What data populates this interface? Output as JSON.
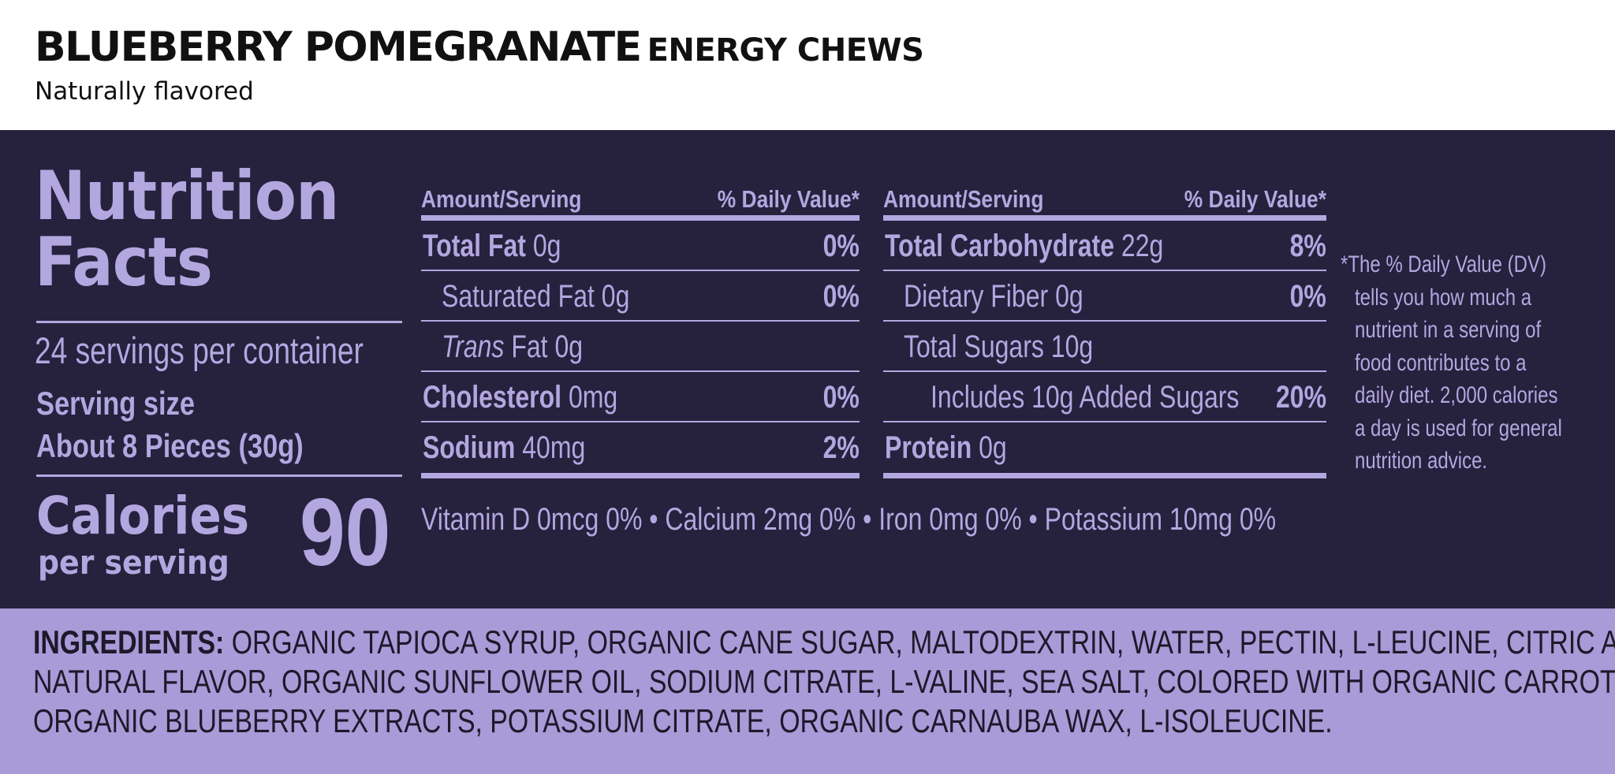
{
  "header": {
    "title_main": "BLUEBERRY POMEGRANATE",
    "title_sub": "ENERGY CHEWS",
    "subtitle": "Naturally flavored"
  },
  "facts": {
    "title_line1": "Nutrition",
    "title_line2": "Facts",
    "servings": "24 servings per container",
    "serving_size_label": "Serving size",
    "serving_size_value": "About 8 Pieces (30g)",
    "calories_label": "Calories",
    "calories_sub": "per serving",
    "calories_value": "90"
  },
  "table": {
    "amount_header": "Amount/Serving",
    "dv_header": "% Daily Value*",
    "left": [
      {
        "name": "Total Fat",
        "amount": "0g",
        "dv": "0%"
      },
      {
        "name": "Saturated Fat",
        "amount": "0g",
        "dv": "0%"
      },
      {
        "name": "Trans",
        "suffix": "Fat",
        "amount": "0g",
        "dv": ""
      },
      {
        "name": "Cholesterol",
        "amount": "0mg",
        "dv": "0%"
      },
      {
        "name": "Sodium",
        "amount": "40mg",
        "dv": "2%"
      }
    ],
    "right": [
      {
        "name": "Total Carbohydrate",
        "amount": "22g",
        "dv": "8%"
      },
      {
        "name": "Dietary Fiber",
        "amount": "0g",
        "dv": "0%"
      },
      {
        "name": "Total Sugars",
        "amount": "10g",
        "dv": ""
      },
      {
        "name": "Includes 10g Added Sugars",
        "amount": "",
        "dv": "20%"
      },
      {
        "name": "Protein",
        "amount": "0g",
        "dv": ""
      }
    ],
    "vitamins": "Vitamin D 0mcg 0% • Calcium 2mg 0% • Iron 0mg 0% • Potassium 10mg 0%"
  },
  "footnote": [
    "*The % Daily Value (DV)",
    "tells you how much a",
    "nutrient in a serving of",
    "food contributes to a",
    "daily diet. 2,000 calories",
    "a day is used for general",
    "nutrition advice."
  ],
  "ingredients": {
    "label": "INGREDIENTS:",
    "lines": [
      "ORGANIC TAPIOCA SYRUP, ORGANIC CANE SUGAR, MALTODEXTRIN, WATER, PECTIN, L-LEUCINE, CITRIC ACID,",
      "NATURAL FLAVOR, ORGANIC SUNFLOWER OIL, SODIUM CITRATE, L-VALINE, SEA SALT, COLORED WITH ORGANIC CARROT AND",
      "ORGANIC BLUEBERRY EXTRACTS, POTASSIUM CITRATE, ORGANIC CARNAUBA WAX, L-ISOLEUCINE."
    ]
  },
  "colors": {
    "panel_bg": "#26213d",
    "panel_text": "#b3a7e0",
    "ingredients_bg": "#a99ad8",
    "ingredients_text": "#1c1a2a"
  }
}
